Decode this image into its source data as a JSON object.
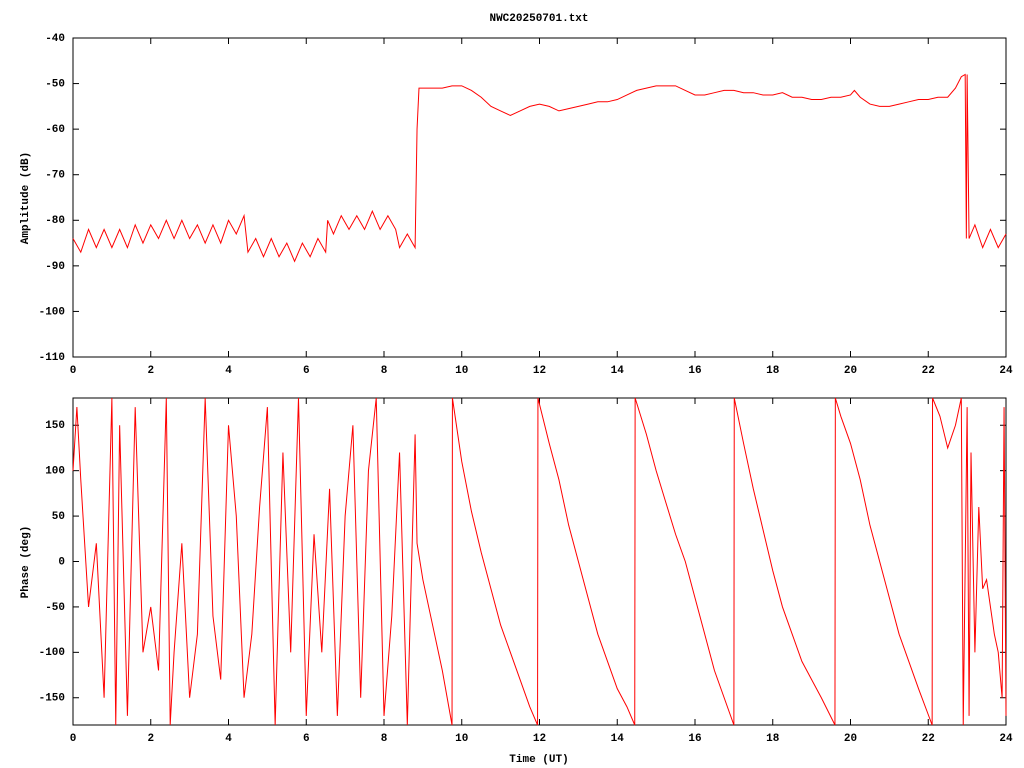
{
  "chart_data": [
    {
      "type": "line",
      "title": "NWC20250701.txt",
      "ylabel": "Amplitude (dB)",
      "xlim": [
        0,
        24
      ],
      "xticks": [
        0,
        2,
        4,
        6,
        8,
        10,
        12,
        14,
        16,
        18,
        20,
        22,
        24
      ],
      "ylim": [
        -110,
        -40
      ],
      "yticks": [
        -40,
        -50,
        -60,
        -70,
        -80,
        -90,
        -100,
        -110
      ],
      "grid": false,
      "series": [
        {
          "name": null,
          "color": "#ff0000",
          "x": [
            0,
            0.2,
            0.4,
            0.6,
            0.8,
            1.0,
            1.2,
            1.4,
            1.6,
            1.8,
            2.0,
            2.2,
            2.4,
            2.6,
            2.8,
            3.0,
            3.2,
            3.4,
            3.6,
            3.8,
            4.0,
            4.2,
            4.4,
            4.5,
            4.7,
            4.9,
            5.1,
            5.3,
            5.5,
            5.7,
            5.9,
            6.1,
            6.3,
            6.5,
            6.55,
            6.7,
            6.9,
            7.1,
            7.3,
            7.5,
            7.7,
            7.9,
            8.1,
            8.3,
            8.4,
            8.6,
            8.8,
            8.85,
            8.9,
            9.25,
            9.5,
            9.75,
            10,
            10.25,
            10.5,
            10.75,
            11,
            11.25,
            11.5,
            11.75,
            12,
            12.25,
            12.5,
            12.75,
            13,
            13.25,
            13.5,
            13.75,
            14,
            14.25,
            14.5,
            14.75,
            15,
            15.25,
            15.5,
            15.75,
            16,
            16.25,
            16.5,
            16.75,
            17,
            17.25,
            17.5,
            17.75,
            18,
            18.25,
            18.5,
            18.75,
            19,
            19.25,
            19.5,
            19.75,
            20,
            20.1,
            20.25,
            20.5,
            20.75,
            21,
            21.25,
            21.5,
            21.75,
            22,
            22.25,
            22.5,
            22.7,
            22.85,
            22.95,
            22.98,
            23.0,
            23.05,
            23.2,
            23.4,
            23.6,
            23.8,
            24
          ],
          "values": [
            -84,
            -87,
            -82,
            -86,
            -82,
            -86,
            -82,
            -86,
            -81,
            -85,
            -81,
            -84,
            -80,
            -84,
            -80,
            -84,
            -81,
            -85,
            -81,
            -85,
            -80,
            -83,
            -79,
            -87,
            -84,
            -88,
            -84,
            -88,
            -85,
            -89,
            -85,
            -88,
            -84,
            -87,
            -80,
            -83,
            -79,
            -82,
            -79,
            -82,
            -78,
            -82,
            -79,
            -82,
            -86,
            -83,
            -86,
            -60,
            -51,
            -51,
            -51,
            -50.5,
            -50.5,
            -51.5,
            -53,
            -55,
            -56,
            -57,
            -56,
            -55,
            -54.5,
            -55,
            -56,
            -55.5,
            -55,
            -54.5,
            -54,
            -54,
            -53.5,
            -52.5,
            -51.5,
            -51,
            -50.5,
            -50.5,
            -50.5,
            -51.5,
            -52.5,
            -52.5,
            -52,
            -51.5,
            -51.5,
            -52,
            -52,
            -52.5,
            -52.5,
            -52,
            -53,
            -53,
            -53.5,
            -53.5,
            -53,
            -53,
            -52.5,
            -51.5,
            -53,
            -54.5,
            -55,
            -55,
            -54.5,
            -54,
            -53.5,
            -53.5,
            -53,
            -53,
            -51,
            -48.5,
            -48,
            -84,
            -48,
            -84,
            -81,
            -86,
            -82,
            -86,
            -83
          ]
        }
      ]
    },
    {
      "type": "line",
      "xlabel": "Time (UT)",
      "ylabel": "Phase (deg)",
      "xlim": [
        0,
        24
      ],
      "xticks": [
        0,
        2,
        4,
        6,
        8,
        10,
        12,
        14,
        16,
        18,
        20,
        22,
        24
      ],
      "ylim": [
        -180,
        180
      ],
      "yticks": [
        150,
        100,
        50,
        0,
        -50,
        -100,
        -150
      ],
      "grid": false,
      "series": [
        {
          "name": null,
          "color": "#ff0000",
          "x": [
            0,
            0.1,
            0.2,
            0.4,
            0.6,
            0.8,
            1.0,
            1.1,
            1.2,
            1.4,
            1.6,
            1.8,
            2.0,
            2.2,
            2.4,
            2.5,
            2.6,
            2.8,
            3.0,
            3.2,
            3.4,
            3.6,
            3.8,
            4.0,
            4.2,
            4.4,
            4.6,
            4.8,
            5.0,
            5.2,
            5.4,
            5.6,
            5.8,
            6.0,
            6.2,
            6.4,
            6.6,
            6.8,
            7.0,
            7.2,
            7.4,
            7.6,
            7.8,
            8.0,
            8.2,
            8.4,
            8.6,
            8.8,
            8.85,
            9.0,
            9.25,
            9.5,
            9.75,
            9.76,
            10.0,
            10.25,
            10.5,
            10.75,
            11.0,
            11.25,
            11.5,
            11.75,
            11.95,
            11.96,
            12.25,
            12.5,
            12.75,
            13.0,
            13.25,
            13.5,
            13.75,
            14.0,
            14.25,
            14.45,
            14.46,
            14.75,
            15.0,
            15.25,
            15.5,
            15.75,
            16.0,
            16.25,
            16.5,
            16.75,
            17.0,
            17.01,
            17.25,
            17.5,
            17.75,
            18.0,
            18.25,
            18.5,
            18.75,
            19.0,
            19.25,
            19.6,
            19.61,
            19.75,
            20.0,
            20.25,
            20.5,
            20.75,
            21.0,
            21.25,
            21.5,
            21.75,
            22.1,
            22.11,
            22.3,
            22.5,
            22.7,
            22.85,
            22.9,
            23.0,
            23.05,
            23.1,
            23.2,
            23.3,
            23.4,
            23.5,
            23.6,
            23.7,
            23.8,
            23.9,
            23.95,
            24.0
          ],
          "values": [
            100,
            170,
            90,
            -50,
            20,
            -150,
            180,
            -180,
            150,
            -170,
            170,
            -100,
            -50,
            -120,
            180,
            -180,
            -100,
            20,
            -150,
            -80,
            180,
            -60,
            -130,
            150,
            50,
            -150,
            -80,
            60,
            170,
            -180,
            120,
            -100,
            180,
            -170,
            30,
            -100,
            80,
            -170,
            50,
            150,
            -150,
            100,
            180,
            -170,
            -60,
            120,
            -180,
            140,
            20,
            -20,
            -70,
            -120,
            -180,
            180,
            110,
            55,
            10,
            -30,
            -70,
            -100,
            -130,
            -160,
            -180,
            180,
            130,
            90,
            40,
            0,
            -40,
            -80,
            -110,
            -140,
            -160,
            -180,
            180,
            140,
            100,
            65,
            30,
            0,
            -40,
            -80,
            -120,
            -150,
            -180,
            180,
            130,
            80,
            35,
            -10,
            -50,
            -80,
            -110,
            -130,
            -150,
            -180,
            180,
            160,
            130,
            90,
            40,
            0,
            -40,
            -80,
            -110,
            -140,
            -180,
            180,
            160,
            125,
            150,
            180,
            -180,
            170,
            -170,
            120,
            -100,
            60,
            -30,
            -20,
            -50,
            -80,
            -100,
            -150,
            170,
            -170
          ]
        }
      ]
    }
  ]
}
